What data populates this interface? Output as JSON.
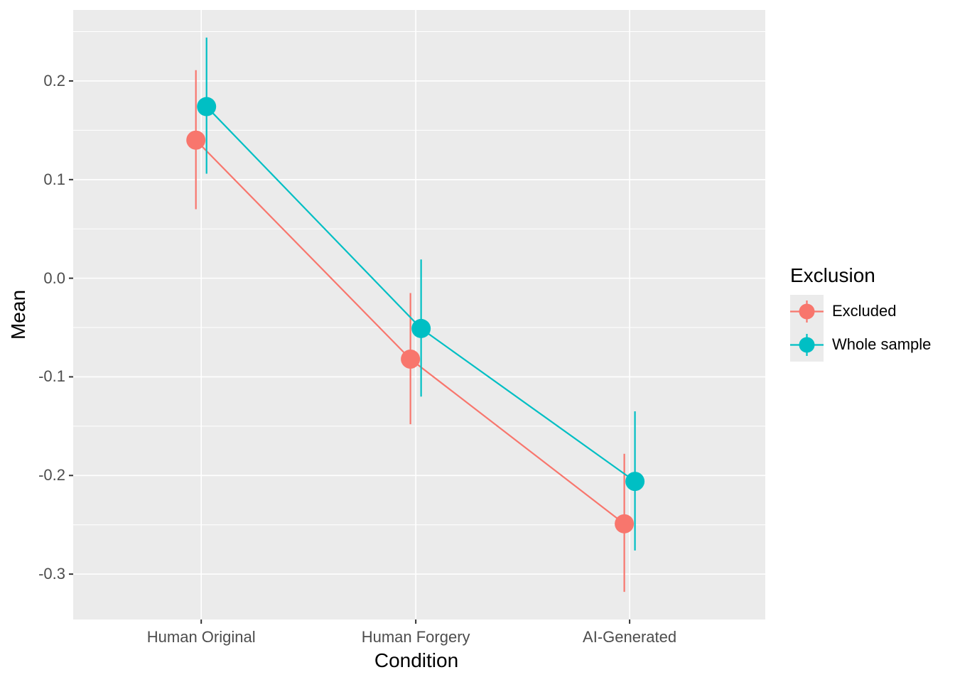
{
  "chart_data": {
    "type": "line",
    "subtype": "point-line-errorbar",
    "title": "",
    "categories": [
      "Human Original",
      "Human Forgery",
      "AI-Generated"
    ],
    "x_axis": {
      "label": "Condition"
    },
    "y_axis": {
      "label": "Mean",
      "tick_labels": [
        "0.2",
        "0.1",
        "0.0",
        "-0.1",
        "-0.2",
        "-0.3"
      ],
      "tick_values": [
        0.2,
        0.1,
        0.0,
        -0.1,
        -0.2,
        -0.3
      ],
      "minor_tick_values": [
        0.25,
        0.15,
        0.05,
        -0.05,
        -0.15,
        -0.25
      ],
      "ylim": [
        -0.346,
        0.272
      ],
      "grid": "on"
    },
    "legend": {
      "title": "Exclusion",
      "position": "right",
      "entries": [
        {
          "label": "Excluded",
          "color": "#F8766D"
        },
        {
          "label": "Whole sample",
          "color": "#00BFC4"
        }
      ]
    },
    "series": [
      {
        "name": "Excluded",
        "color": "#F8766D",
        "values": [
          0.14,
          -0.082,
          -0.249
        ],
        "ci_lower": [
          0.07,
          -0.148,
          -0.318
        ],
        "ci_upper": [
          0.211,
          -0.015,
          -0.178
        ]
      },
      {
        "name": "Whole sample",
        "color": "#00BFC4",
        "values": [
          0.174,
          -0.051,
          -0.206
        ],
        "ci_lower": [
          0.106,
          -0.12,
          -0.276
        ],
        "ci_upper": [
          0.244,
          0.019,
          -0.135
        ]
      }
    ],
    "style": {
      "panel_background": "#EBEBEB",
      "grid_color": "#FFFFFF",
      "axis_tick_color": "#333333",
      "tick_label_color": "#4D4D4D",
      "axis_title_color": "#000000",
      "page_background": "#FFFFFF"
    }
  }
}
